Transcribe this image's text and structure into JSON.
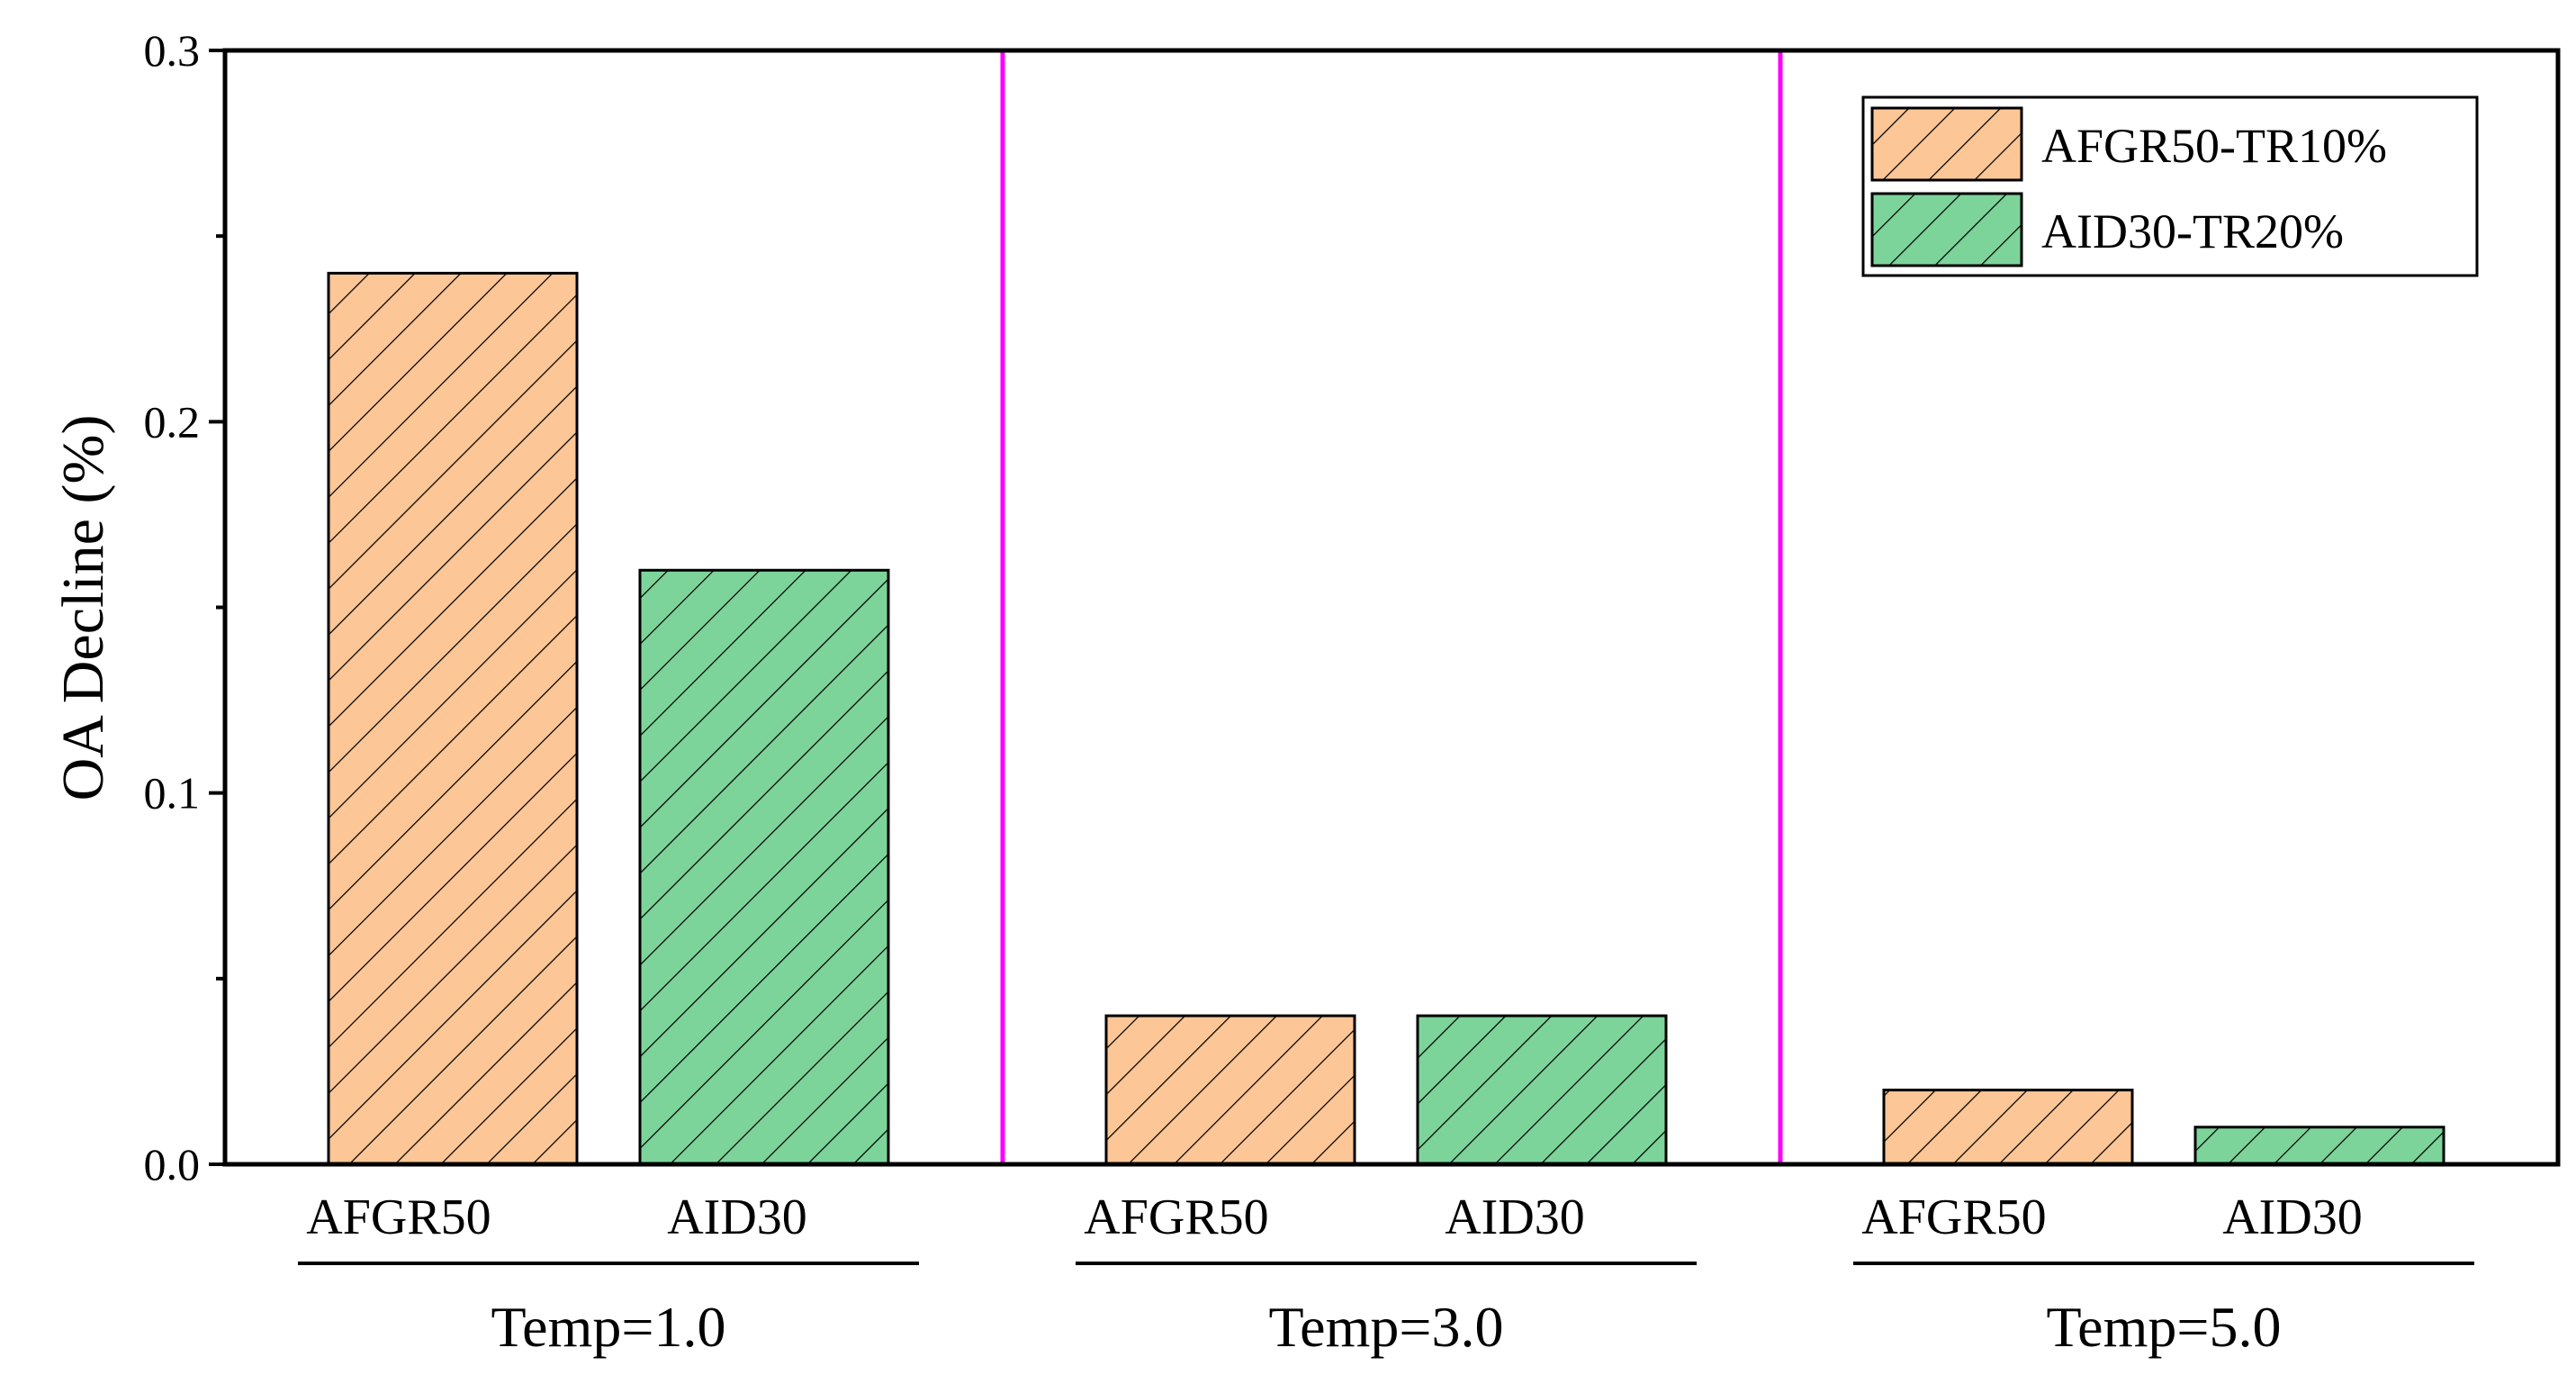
{
  "chart_data": {
    "type": "bar",
    "ylabel": "OA Decline (%)",
    "ylim": [
      0,
      0.3
    ],
    "yticks": [
      "0.0",
      "0.1",
      "0.2",
      "0.3"
    ],
    "ytick_values": [
      0,
      0.1,
      0.2,
      0.3
    ],
    "groups": [
      {
        "label": "Temp=1.0",
        "categories": [
          "AFGR50",
          "AID30"
        ],
        "values": [
          0.24,
          0.16
        ]
      },
      {
        "label": "Temp=3.0",
        "categories": [
          "AFGR50",
          "AID30"
        ],
        "values": [
          0.04,
          0.04
        ]
      },
      {
        "label": "Temp=5.0",
        "categories": [
          "AFGR50",
          "AID30"
        ],
        "values": [
          0.02,
          0.01
        ]
      }
    ],
    "series": [
      {
        "name": "AFGR50-TR10%",
        "color": "#fcc696",
        "pattern": "diagonal-hatch"
      },
      {
        "name": "AID30-TR20%",
        "color": "#7dd49a",
        "pattern": "diagonal-hatch"
      }
    ],
    "separator_color": "#ff00ff",
    "legend_position": "top-right"
  }
}
